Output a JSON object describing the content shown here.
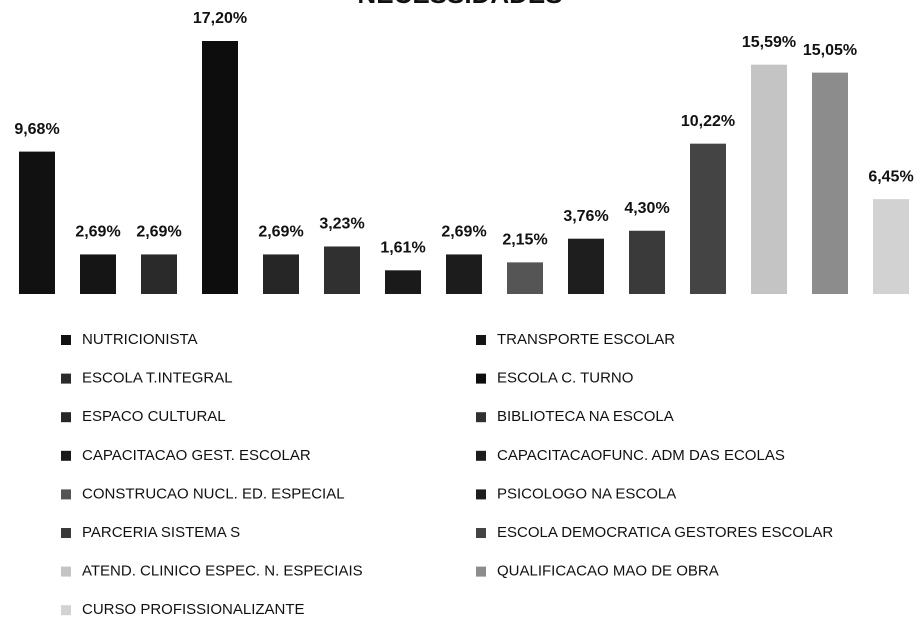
{
  "chart_data": {
    "type": "bar",
    "title": "NECESSIDADES",
    "categories": [
      "NUTRICIONISTA",
      "TRANSPORTE ESCOLAR",
      "ESCOLA T.INTEGRAL",
      "ESCOLA C. TURNO",
      "ESPACO CULTURAL",
      "BIBLIOTECA NA ESCOLA",
      "CAPACITACAO GEST. ESCOLAR",
      "CAPACITACAOFUNC. ADM DAS ECOLAS",
      "CONSTRUCAO NUCL. ED. ESPECIAL",
      "PSICOLOGO NA ESCOLA",
      "PARCERIA SISTEMA S",
      "ESCOLA DEMOCRATICA GESTORES ESCOLAR",
      "ATEND. CLINICO ESPEC. N. ESPECIAIS",
      "QUALIFICACAO MAO DE OBRA",
      "CURSO PROFISSIONALIZANTE"
    ],
    "values": [
      9.68,
      2.69,
      2.69,
      17.2,
      2.69,
      3.23,
      1.61,
      2.69,
      2.15,
      3.76,
      4.3,
      10.22,
      15.59,
      15.05,
      6.45
    ],
    "value_labels": [
      "9,68%",
      "2,69%",
      "2,69%",
      "17,20%",
      "2,69%",
      "3,23%",
      "1,61%",
      "2,69%",
      "2,15%",
      "3,76%",
      "4,30%",
      "10,22%",
      "15,59%",
      "15,05%",
      "6,45%"
    ],
    "colors": [
      "#111111",
      "#151515",
      "#2a2a2a",
      "#0d0d0d",
      "#262626",
      "#303030",
      "#1a1a1a",
      "#1c1c1c",
      "#555555",
      "#1e1e1e",
      "#3a3a3a",
      "#444444",
      "#c4c4c4",
      "#8c8c8c",
      "#d2d2d2"
    ],
    "legend": "bottom"
  }
}
